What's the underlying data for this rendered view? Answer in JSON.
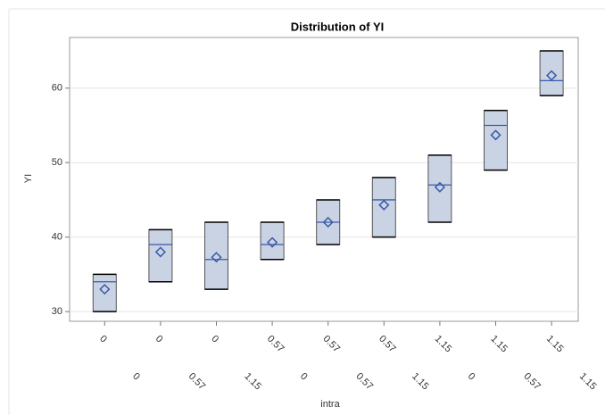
{
  "chart_data": {
    "type": "box",
    "title": "Distribution of YI",
    "y_label": "YI",
    "x_label": "intra",
    "categories": [
      [
        "0",
        "0"
      ],
      [
        "0",
        "0.57"
      ],
      [
        "0",
        "1.15"
      ],
      [
        "0.57",
        "0"
      ],
      [
        "0.57",
        "0.57"
      ],
      [
        "0.57",
        "1.15"
      ],
      [
        "1.15",
        "0"
      ],
      [
        "1.15",
        "0.57"
      ],
      [
        "1.15",
        "1.15"
      ]
    ],
    "q1": [
      30,
      34,
      33,
      37,
      39,
      40,
      42,
      49,
      59
    ],
    "q3": [
      35,
      41,
      42,
      42,
      45,
      48,
      51,
      57,
      65
    ],
    "median": [
      34,
      39,
      37,
      39,
      42,
      45,
      47,
      55,
      61
    ],
    "mean": [
      33,
      38,
      37.3,
      39.3,
      42,
      44.3,
      46.7,
      53.7,
      61.7
    ],
    "color": "#c9d3e3",
    "line_color": "#3a5aa8",
    "ylim": [
      28.7,
      66.8
    ],
    "yticks": [
      30,
      40,
      50,
      60
    ],
    "grid": true
  }
}
